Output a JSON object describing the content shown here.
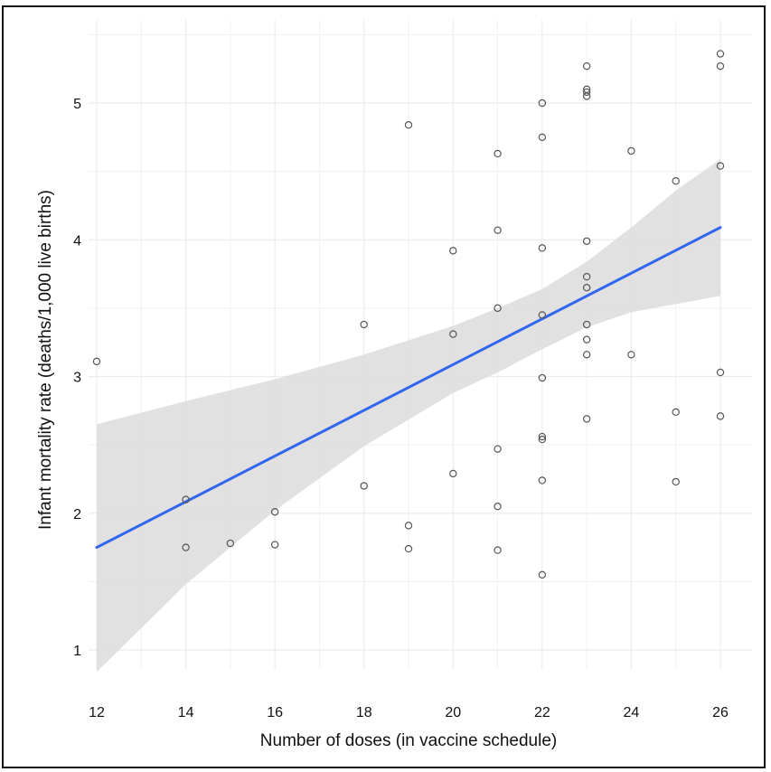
{
  "chart_data": {
    "type": "scatter",
    "title": "",
    "xlabel": "Number of doses (in vaccine schedule)",
    "ylabel": "Infant mortality rate (deaths/1,000 live births)",
    "xlim": [
      11.9,
      26.7
    ],
    "ylim": [
      0.75,
      5.48
    ],
    "xticks": [
      12,
      14,
      16,
      18,
      20,
      22,
      24,
      26
    ],
    "yticks": [
      1,
      2,
      3,
      4,
      5
    ],
    "grid": true,
    "legend": "none",
    "colors": {
      "points": "#555555",
      "fit_line": "#3366ee",
      "band": "#dcdcdc",
      "grid": "#ececec"
    },
    "points": [
      {
        "x": 12,
        "y": 3.11
      },
      {
        "x": 14,
        "y": 2.1
      },
      {
        "x": 14,
        "y": 1.75
      },
      {
        "x": 15,
        "y": 1.78
      },
      {
        "x": 16,
        "y": 2.01
      },
      {
        "x": 16,
        "y": 1.77
      },
      {
        "x": 18,
        "y": 3.38
      },
      {
        "x": 18,
        "y": 2.2
      },
      {
        "x": 19,
        "y": 4.84
      },
      {
        "x": 19,
        "y": 1.91
      },
      {
        "x": 19,
        "y": 1.74
      },
      {
        "x": 20,
        "y": 3.92
      },
      {
        "x": 20,
        "y": 3.31
      },
      {
        "x": 20,
        "y": 2.29
      },
      {
        "x": 21,
        "y": 4.63
      },
      {
        "x": 21,
        "y": 4.07
      },
      {
        "x": 21,
        "y": 3.5
      },
      {
        "x": 21,
        "y": 2.47
      },
      {
        "x": 21,
        "y": 2.05
      },
      {
        "x": 21,
        "y": 1.73
      },
      {
        "x": 22,
        "y": 5.0
      },
      {
        "x": 22,
        "y": 4.75
      },
      {
        "x": 22,
        "y": 3.94
      },
      {
        "x": 22,
        "y": 3.45
      },
      {
        "x": 22,
        "y": 2.99
      },
      {
        "x": 22,
        "y": 2.56
      },
      {
        "x": 22,
        "y": 2.54
      },
      {
        "x": 22,
        "y": 2.24
      },
      {
        "x": 22,
        "y": 1.55
      },
      {
        "x": 23,
        "y": 5.27
      },
      {
        "x": 23,
        "y": 5.1
      },
      {
        "x": 23,
        "y": 5.08
      },
      {
        "x": 23,
        "y": 5.05
      },
      {
        "x": 23,
        "y": 3.99
      },
      {
        "x": 23,
        "y": 3.73
      },
      {
        "x": 23,
        "y": 3.65
      },
      {
        "x": 23,
        "y": 3.38
      },
      {
        "x": 23,
        "y": 3.27
      },
      {
        "x": 23,
        "y": 3.16
      },
      {
        "x": 23,
        "y": 2.69
      },
      {
        "x": 24,
        "y": 4.65
      },
      {
        "x": 24,
        "y": 3.16
      },
      {
        "x": 25,
        "y": 4.43
      },
      {
        "x": 25,
        "y": 2.74
      },
      {
        "x": 25,
        "y": 2.23
      },
      {
        "x": 26,
        "y": 5.36
      },
      {
        "x": 26,
        "y": 5.27
      },
      {
        "x": 26,
        "y": 4.54
      },
      {
        "x": 26,
        "y": 3.03
      },
      {
        "x": 26,
        "y": 2.71
      }
    ],
    "fit_line": {
      "x": [
        12,
        26
      ],
      "y": [
        1.75,
        4.09
      ]
    },
    "confidence_band": {
      "x": [
        12,
        14,
        16,
        18,
        20,
        21,
        22,
        23,
        24,
        25,
        26
      ],
      "upper": [
        2.65,
        2.82,
        2.98,
        3.16,
        3.37,
        3.5,
        3.64,
        3.84,
        4.09,
        4.36,
        4.59
      ],
      "lower": [
        0.84,
        1.48,
        2.02,
        2.49,
        2.88,
        3.03,
        3.2,
        3.36,
        3.47,
        3.53,
        3.59
      ]
    }
  }
}
